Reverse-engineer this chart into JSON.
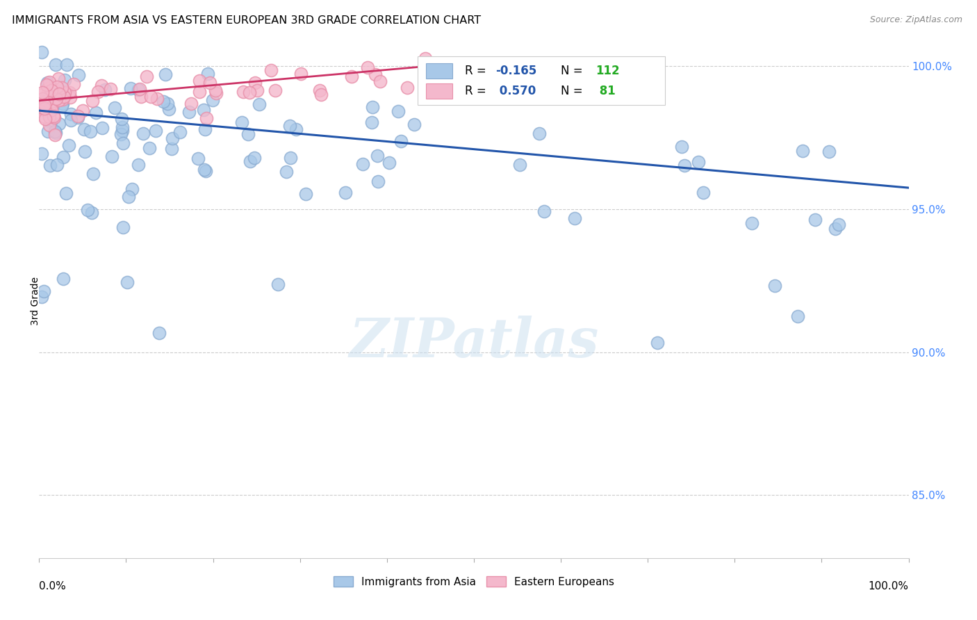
{
  "title": "IMMIGRANTS FROM ASIA VS EASTERN EUROPEAN 3RD GRADE CORRELATION CHART",
  "source": "Source: ZipAtlas.com",
  "ylabel": "3rd Grade",
  "xlim": [
    0.0,
    1.0
  ],
  "ylim": [
    0.828,
    1.008
  ],
  "y_ticks": [
    0.85,
    0.9,
    0.95,
    1.0
  ],
  "y_tick_labels": [
    "85.0%",
    "90.0%",
    "95.0%",
    "100.0%"
  ],
  "legend_blue_label": "Immigrants from Asia",
  "legend_pink_label": "Eastern Europeans",
  "R_blue": -0.165,
  "N_blue": 112,
  "R_pink": 0.57,
  "N_pink": 81,
  "blue_color": "#a8c8e8",
  "blue_edge_color": "#88aad0",
  "pink_color": "#f4b8cc",
  "pink_edge_color": "#e890aa",
  "blue_line_color": "#2255aa",
  "pink_line_color": "#cc3366",
  "tick_color": "#4488ff",
  "watermark": "ZIPatlas",
  "blue_trend_x": [
    0.0,
    1.0
  ],
  "blue_trend_y": [
    0.9845,
    0.9575
  ],
  "pink_trend_x": [
    0.0,
    0.52
  ],
  "pink_trend_y": [
    0.988,
    1.002
  ]
}
